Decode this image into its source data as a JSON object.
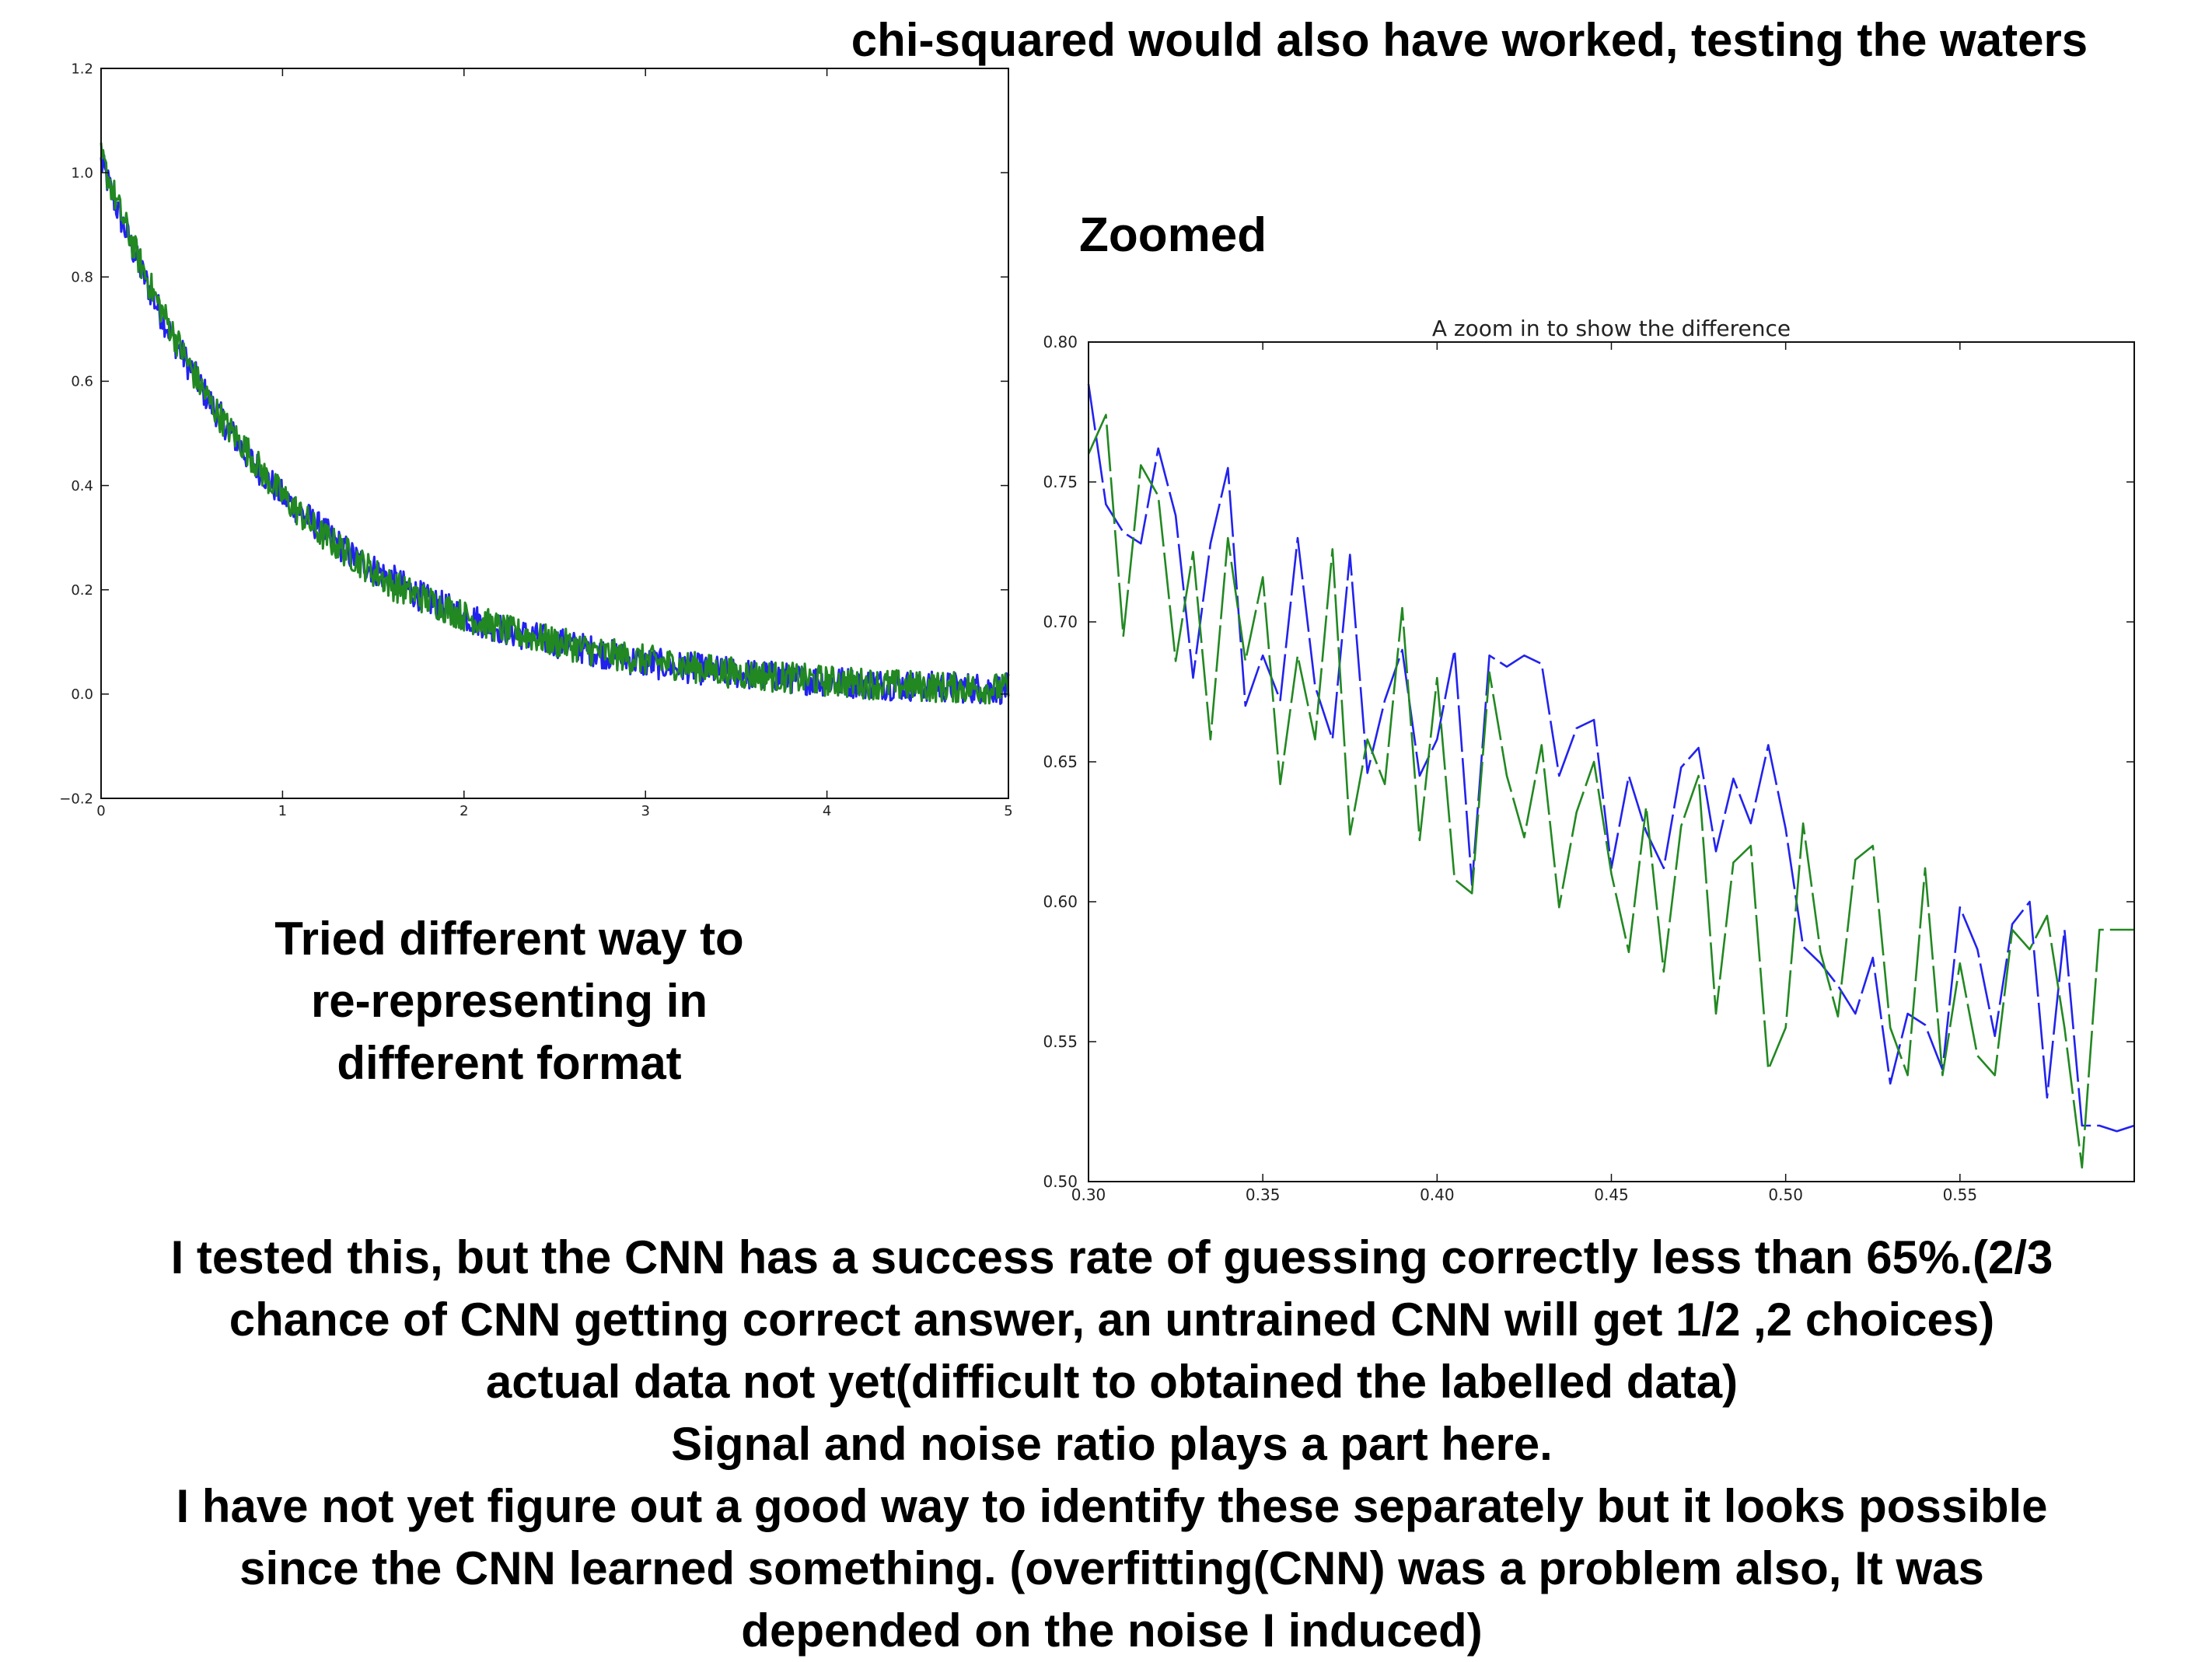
{
  "slide": {
    "top_note": "chi-squared would also have worked, testing the waters",
    "zoom_label": "Zoomed",
    "tried_lines": [
      "Tried different way to",
      "re-representing in",
      "different format"
    ],
    "bottom_lines": [
      "I tested this, but the CNN has a success rate of guessing correctly less than 65%.(2/3",
      "chance of CNN getting correct answer, an untrained CNN will get 1/2 ,2 choices)",
      "actual data not yet(difficult to obtained the labelled data)",
      "Signal and noise ratio plays a part here.",
      "I have not yet figure out a good way to identify these separately but it looks possible",
      "since the CNN learned something. (overfitting(CNN) was a problem also, It was",
      "depended on the noise I induced)"
    ]
  },
  "chart_data": [
    {
      "type": "line",
      "title": "",
      "xlabel": "",
      "ylabel": "",
      "xlim": [
        0,
        5
      ],
      "ylim": [
        -0.2,
        1.2
      ],
      "xticks": [
        0,
        1,
        2,
        3,
        4,
        5
      ],
      "yticks": [
        -0.2,
        0.0,
        0.2,
        0.4,
        0.6,
        0.8,
        1.0,
        1.2
      ],
      "xtick_labels": [
        "0",
        "1",
        "2",
        "3",
        "4",
        "5"
      ],
      "ytick_labels": [
        "−0.2",
        "0.0",
        "0.2",
        "0.4",
        "0.6",
        "0.8",
        "1.0",
        "1.2"
      ],
      "series": [
        {
          "name": "blue",
          "color": "#2222ee",
          "x": [
            0,
            0.1,
            0.2,
            0.3,
            0.4,
            0.5,
            0.6,
            0.7,
            0.8,
            0.9,
            1.0,
            1.2,
            1.4,
            1.6,
            1.8,
            2.0,
            2.25,
            2.5,
            2.75,
            3.0,
            3.5,
            4.0,
            4.5,
            5.0
          ],
          "y": [
            1.02,
            0.92,
            0.83,
            0.75,
            0.68,
            0.62,
            0.56,
            0.51,
            0.46,
            0.42,
            0.38,
            0.32,
            0.26,
            0.22,
            0.18,
            0.15,
            0.12,
            0.1,
            0.08,
            0.06,
            0.04,
            0.025,
            0.015,
            0.01
          ]
        },
        {
          "name": "green",
          "color": "#228822",
          "x": [
            0,
            0.1,
            0.2,
            0.3,
            0.4,
            0.5,
            0.6,
            0.7,
            0.8,
            0.9,
            1.0,
            1.2,
            1.4,
            1.6,
            1.8,
            2.0,
            2.25,
            2.5,
            2.75,
            3.0,
            3.5,
            4.0,
            4.5,
            5.0
          ],
          "y": [
            1.03,
            0.93,
            0.84,
            0.76,
            0.69,
            0.62,
            0.56,
            0.51,
            0.47,
            0.42,
            0.38,
            0.31,
            0.26,
            0.21,
            0.18,
            0.15,
            0.12,
            0.1,
            0.08,
            0.065,
            0.04,
            0.025,
            0.015,
            0.01
          ]
        }
      ]
    },
    {
      "type": "line",
      "title": "A zoom in to show the difference",
      "xlabel": "",
      "ylabel": "",
      "xlim": [
        0.3,
        0.6
      ],
      "ylim": [
        0.5,
        0.8
      ],
      "xticks": [
        0.3,
        0.35,
        0.4,
        0.45,
        0.5,
        0.55
      ],
      "yticks": [
        0.5,
        0.55,
        0.6,
        0.65,
        0.7,
        0.75,
        0.8
      ],
      "xtick_labels": [
        "0.30",
        "0.35",
        "0.40",
        "0.45",
        "0.50",
        "0.55"
      ],
      "ytick_labels": [
        "0.50",
        "0.55",
        "0.60",
        "0.65",
        "0.70",
        "0.75",
        "0.80"
      ],
      "series": [
        {
          "name": "blue",
          "color": "#2222ee",
          "x": [
            0.3,
            0.305,
            0.31,
            0.315,
            0.32,
            0.325,
            0.33,
            0.335,
            0.34,
            0.345,
            0.35,
            0.355,
            0.36,
            0.365,
            0.37,
            0.375,
            0.38,
            0.385,
            0.39,
            0.395,
            0.4,
            0.405,
            0.41,
            0.415,
            0.42,
            0.425,
            0.43,
            0.435,
            0.44,
            0.445,
            0.45,
            0.455,
            0.46,
            0.465,
            0.47,
            0.475,
            0.48,
            0.485,
            0.49,
            0.495,
            0.5,
            0.505,
            0.51,
            0.515,
            0.52,
            0.525,
            0.53,
            0.535,
            0.54,
            0.545,
            0.55,
            0.555,
            0.56,
            0.565,
            0.57,
            0.575,
            0.58,
            0.585,
            0.59,
            0.595,
            0.6
          ],
          "y": [
            0.785,
            0.742,
            0.732,
            0.728,
            0.762,
            0.738,
            0.68,
            0.728,
            0.755,
            0.67,
            0.688,
            0.672,
            0.73,
            0.677,
            0.658,
            0.724,
            0.646,
            0.672,
            0.69,
            0.645,
            0.658,
            0.69,
            0.606,
            0.688,
            0.684,
            0.688,
            0.685,
            0.645,
            0.662,
            0.665,
            0.612,
            0.645,
            0.625,
            0.612,
            0.648,
            0.655,
            0.618,
            0.644,
            0.628,
            0.656,
            0.626,
            0.584,
            0.578,
            0.57,
            0.56,
            0.58,
            0.535,
            0.56,
            0.556,
            0.54,
            0.598,
            0.583,
            0.552,
            0.592,
            0.6,
            0.53,
            0.59,
            0.52,
            0.52,
            0.518,
            0.52
          ],
          "_note": "approximate"
        },
        {
          "name": "green",
          "color": "#228822",
          "x": [
            0.3,
            0.305,
            0.31,
            0.315,
            0.32,
            0.325,
            0.33,
            0.335,
            0.34,
            0.345,
            0.35,
            0.355,
            0.36,
            0.365,
            0.37,
            0.375,
            0.38,
            0.385,
            0.39,
            0.395,
            0.4,
            0.405,
            0.41,
            0.415,
            0.42,
            0.425,
            0.43,
            0.435,
            0.44,
            0.445,
            0.45,
            0.455,
            0.46,
            0.465,
            0.47,
            0.475,
            0.48,
            0.485,
            0.49,
            0.495,
            0.5,
            0.505,
            0.51,
            0.515,
            0.52,
            0.525,
            0.53,
            0.535,
            0.54,
            0.545,
            0.55,
            0.555,
            0.56,
            0.565,
            0.57,
            0.575,
            0.58,
            0.585,
            0.59,
            0.595,
            0.6
          ],
          "y": [
            0.76,
            0.774,
            0.695,
            0.756,
            0.745,
            0.686,
            0.725,
            0.658,
            0.73,
            0.686,
            0.716,
            0.642,
            0.688,
            0.658,
            0.726,
            0.624,
            0.658,
            0.642,
            0.705,
            0.622,
            0.68,
            0.608,
            0.603,
            0.682,
            0.645,
            0.623,
            0.656,
            0.598,
            0.632,
            0.65,
            0.61,
            0.582,
            0.634,
            0.575,
            0.627,
            0.645,
            0.56,
            0.614,
            0.62,
            0.54,
            0.555,
            0.628,
            0.582,
            0.559,
            0.615,
            0.62,
            0.555,
            0.538,
            0.612,
            0.538,
            0.578,
            0.545,
            0.538,
            0.59,
            0.583,
            0.595,
            0.555,
            0.505,
            0.59,
            0.59,
            0.59
          ]
        }
      ]
    }
  ]
}
